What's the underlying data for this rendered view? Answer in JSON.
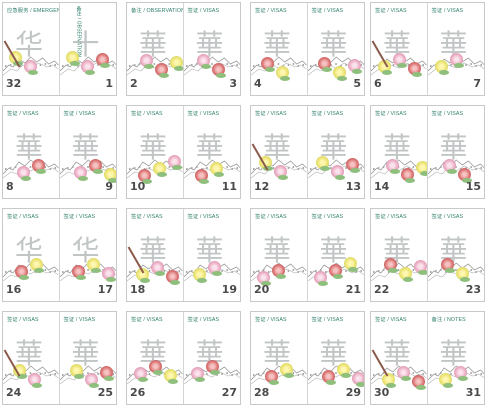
{
  "spreads": [
    {
      "left": {
        "header": "应急服务 / EMERGENCIES",
        "number": "32",
        "glyph": "华",
        "header_vertical": false
      },
      "right": {
        "header": "备注 / OBSERVATION",
        "number": "1",
        "glyph": "十",
        "header_vertical": true
      }
    },
    {
      "left": {
        "header": "备注 / OBSERVATION",
        "number": "2",
        "glyph": "華"
      },
      "right": {
        "header": "签证 / VISAS",
        "number": "3",
        "glyph": "華"
      }
    },
    {
      "left": {
        "header": "签证 / VISAS",
        "number": "4",
        "glyph": "華"
      },
      "right": {
        "header": "签证 / VISAS",
        "number": "5",
        "glyph": "華"
      }
    },
    {
      "left": {
        "header": "签证 / VISAS",
        "number": "6",
        "glyph": "華"
      },
      "right": {
        "header": "签证 / VISAS",
        "number": "7",
        "glyph": "華"
      }
    },
    {
      "left": {
        "header": "签证 / VISAS",
        "number": "8",
        "glyph": "華"
      },
      "right": {
        "header": "签证 / VISAS",
        "number": "9",
        "glyph": "華"
      }
    },
    {
      "left": {
        "header": "签证 / VISAS",
        "number": "10",
        "glyph": "華"
      },
      "right": {
        "header": "签证 / VISAS",
        "number": "11",
        "glyph": "華"
      }
    },
    {
      "left": {
        "header": "签证 / VISAS",
        "number": "12",
        "glyph": "華"
      },
      "right": {
        "header": "签证 / VISAS",
        "number": "13",
        "glyph": "華"
      }
    },
    {
      "left": {
        "header": "签证 / VISAS",
        "number": "14",
        "glyph": "華"
      },
      "right": {
        "header": "签证 / VISAS",
        "number": "15",
        "glyph": "華"
      }
    },
    {
      "left": {
        "header": "签证 / VISAS",
        "number": "16",
        "glyph": "华"
      },
      "right": {
        "header": "签证 / VISAS",
        "number": "17",
        "glyph": "华"
      }
    },
    {
      "left": {
        "header": "签证 / VISAS",
        "number": "18",
        "glyph": "華"
      },
      "right": {
        "header": "签证 / VISAS",
        "number": "19",
        "glyph": "華"
      }
    },
    {
      "left": {
        "header": "签证 / VISAS",
        "number": "20",
        "glyph": "華"
      },
      "right": {
        "header": "签证 / VISAS",
        "number": "21",
        "glyph": "華"
      }
    },
    {
      "left": {
        "header": "签证 / VISAS",
        "number": "22",
        "glyph": "華"
      },
      "right": {
        "header": "签证 / VISAS",
        "number": "23",
        "glyph": "華"
      }
    },
    {
      "left": {
        "header": "签证 / VISAS",
        "number": "24",
        "glyph": "華"
      },
      "right": {
        "header": "签证 / VISAS",
        "number": "25",
        "glyph": "華"
      }
    },
    {
      "left": {
        "header": "签证 / VISAS",
        "number": "26",
        "glyph": "華"
      },
      "right": {
        "header": "签证 / VISAS",
        "number": "27",
        "glyph": "華"
      }
    },
    {
      "left": {
        "header": "签证 / VISAS",
        "number": "28",
        "glyph": "華"
      },
      "right": {
        "header": "签证 / VISAS",
        "number": "29",
        "glyph": "華"
      }
    },
    {
      "left": {
        "header": "签证 / VISAS",
        "number": "30",
        "glyph": "華"
      },
      "right": {
        "header": "备注 / NOTES",
        "number": "31",
        "glyph": "華"
      }
    }
  ],
  "colors": {
    "header_text": "#2e7f6b",
    "page_number": "#4a4a4a",
    "glyph": "#b7bcbc",
    "border": "#c9c9c9"
  }
}
